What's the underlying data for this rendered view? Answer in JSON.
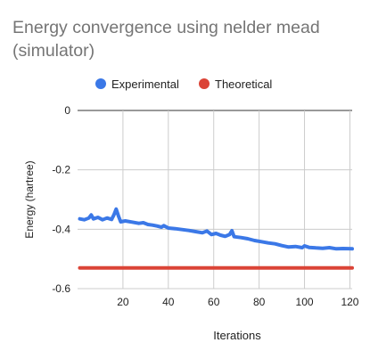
{
  "chart_data": {
    "type": "line",
    "title": "Energy convergence using nelder mead (simulator)",
    "xlabel": "Iterations",
    "ylabel": "Energy (hartree)",
    "xlim": [
      0,
      121
    ],
    "ylim": [
      -0.6,
      0
    ],
    "x_ticks": [
      20,
      40,
      60,
      80,
      100,
      120
    ],
    "y_ticks": [
      0,
      -0.2,
      -0.4,
      -0.6
    ],
    "y_tick_labels": [
      "0",
      "-0.2",
      "-0.4",
      "-0.6"
    ],
    "grid": true,
    "legend_position": "top",
    "series": [
      {
        "name": "Experimental",
        "color": "#3B78E7",
        "points": [
          [
            1,
            -0.365
          ],
          [
            3,
            -0.368
          ],
          [
            5,
            -0.362
          ],
          [
            6,
            -0.352
          ],
          [
            7,
            -0.365
          ],
          [
            9,
            -0.36
          ],
          [
            11,
            -0.368
          ],
          [
            13,
            -0.362
          ],
          [
            15,
            -0.367
          ],
          [
            16,
            -0.352
          ],
          [
            17,
            -0.332
          ],
          [
            18,
            -0.355
          ],
          [
            19,
            -0.375
          ],
          [
            21,
            -0.372
          ],
          [
            24,
            -0.376
          ],
          [
            27,
            -0.38
          ],
          [
            29,
            -0.378
          ],
          [
            31,
            -0.384
          ],
          [
            33,
            -0.386
          ],
          [
            35,
            -0.389
          ],
          [
            37,
            -0.393
          ],
          [
            38,
            -0.388
          ],
          [
            40,
            -0.396
          ],
          [
            43,
            -0.398
          ],
          [
            46,
            -0.401
          ],
          [
            49,
            -0.404
          ],
          [
            52,
            -0.408
          ],
          [
            55,
            -0.412
          ],
          [
            57,
            -0.406
          ],
          [
            59,
            -0.418
          ],
          [
            61,
            -0.414
          ],
          [
            63,
            -0.42
          ],
          [
            65,
            -0.424
          ],
          [
            67,
            -0.418
          ],
          [
            68,
            -0.405
          ],
          [
            69,
            -0.425
          ],
          [
            72,
            -0.428
          ],
          [
            75,
            -0.432
          ],
          [
            78,
            -0.438
          ],
          [
            81,
            -0.442
          ],
          [
            84,
            -0.446
          ],
          [
            87,
            -0.449
          ],
          [
            90,
            -0.455
          ],
          [
            93,
            -0.46
          ],
          [
            96,
            -0.458
          ],
          [
            99,
            -0.462
          ],
          [
            100,
            -0.456
          ],
          [
            102,
            -0.461
          ],
          [
            105,
            -0.463
          ],
          [
            108,
            -0.464
          ],
          [
            111,
            -0.462
          ],
          [
            114,
            -0.466
          ],
          [
            117,
            -0.465
          ],
          [
            121,
            -0.466
          ]
        ]
      },
      {
        "name": "Theoretical",
        "color": "#DB4437",
        "points": [
          [
            1,
            -0.53
          ],
          [
            121,
            -0.53
          ]
        ]
      }
    ]
  }
}
